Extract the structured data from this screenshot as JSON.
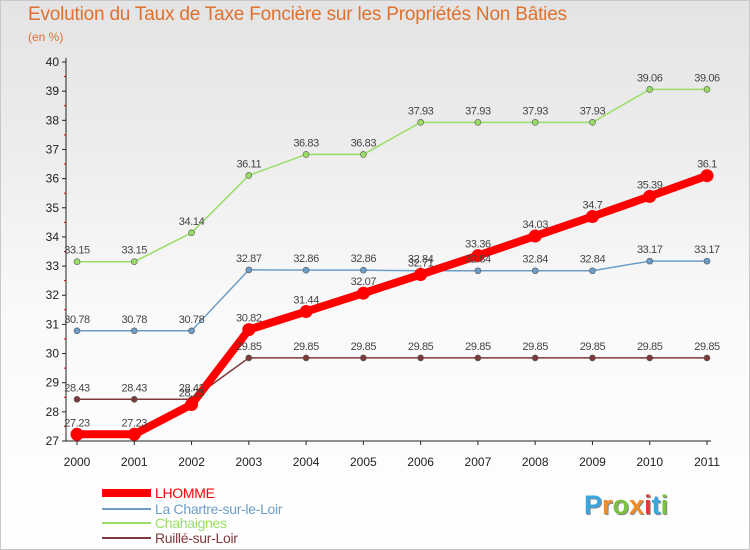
{
  "chart_data": {
    "type": "line",
    "title": "Evolution du Taux de Taxe Foncière sur les Propriétés Non Bâties",
    "unit_label": "(en %)",
    "categories": [
      "2000",
      "2001",
      "2002",
      "2003",
      "2004",
      "2005",
      "2006",
      "2007",
      "2008",
      "2009",
      "2010",
      "2011"
    ],
    "ylim": [
      27,
      40
    ],
    "yticks": [
      27,
      28,
      29,
      30,
      31,
      32,
      33,
      34,
      35,
      36,
      37,
      38,
      39,
      40
    ],
    "grid": false,
    "legend_position": "bottom-left",
    "series": [
      {
        "name": "LHOMME",
        "color": "#ff0000",
        "values": [
          27.23,
          27.23,
          28.25,
          30.82,
          31.44,
          32.07,
          32.71,
          33.36,
          34.03,
          34.7,
          35.39,
          36.1
        ],
        "labels": [
          "27.23",
          "27.23",
          "28.25",
          "30.82",
          "31.44",
          "32.07",
          "32.71",
          "33.36",
          "34.03",
          "34.7",
          "35.39",
          "36.1"
        ]
      },
      {
        "name": "La Chartre-sur-le-Loir",
        "color": "#6b9dc8",
        "values": [
          30.78,
          30.78,
          30.78,
          32.87,
          32.86,
          32.86,
          32.84,
          32.84,
          32.84,
          32.84,
          33.17,
          33.17
        ],
        "labels": [
          "30.78",
          "30.78",
          "30.78",
          "32.87",
          "32.86",
          "32.86",
          "32.84",
          "32.84",
          "32.84",
          "32.84",
          "33.17",
          "33.17"
        ]
      },
      {
        "name": "Chahaignes",
        "color": "#99dd66",
        "values": [
          33.15,
          33.15,
          34.14,
          36.11,
          36.83,
          36.83,
          37.93,
          37.93,
          37.93,
          37.93,
          39.06,
          39.06
        ],
        "labels": [
          "33.15",
          "33.15",
          "34.14",
          "36.11",
          "36.83",
          "36.83",
          "37.93",
          "37.93",
          "37.93",
          "37.93",
          "39.06",
          "39.06"
        ]
      },
      {
        "name": "Ruillé-sur-Loir",
        "color": "#7d3a3a",
        "values": [
          28.43,
          28.43,
          28.43,
          29.85,
          29.85,
          29.85,
          29.85,
          29.85,
          29.85,
          29.85,
          29.85,
          29.85
        ],
        "labels": [
          "28.43",
          "28.43",
          "28.43",
          "29.85",
          "29.85",
          "29.85",
          "29.85",
          "29.85",
          "29.85",
          "29.85",
          "29.85",
          "29.85"
        ]
      }
    ]
  },
  "branding": {
    "logo_letters": [
      "P",
      "r",
      "o",
      "x",
      "i",
      "t",
      "i"
    ],
    "logo_colors": [
      "#3aa6e0",
      "#f28c28",
      "#7cc242",
      "#f28c28",
      "#e23a3a",
      "#3aa6e0",
      "#7cc242"
    ]
  }
}
